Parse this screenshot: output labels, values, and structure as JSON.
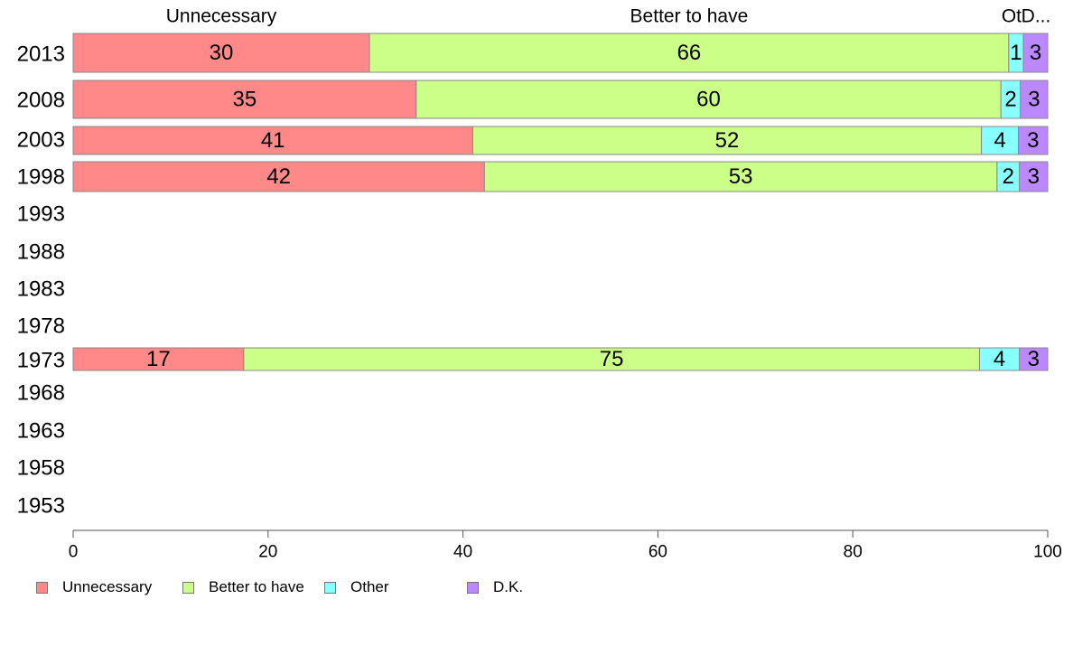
{
  "chart_data": {
    "type": "bar",
    "orientation": "horizontal",
    "stacked": true,
    "categories": [
      "2013",
      "2008",
      "2003",
      "1998",
      "1993",
      "1988",
      "1983",
      "1978",
      "1973",
      "1968",
      "1963",
      "1958",
      "1953"
    ],
    "series": [
      {
        "name": "Unnecessary",
        "color": "#FF8888",
        "values": [
          30.4,
          35.2,
          41.0,
          42.2,
          null,
          null,
          null,
          null,
          17.5,
          null,
          null,
          null,
          null
        ],
        "labels": [
          "30",
          "35",
          "41",
          "42",
          "",
          "",
          "",
          "",
          "17",
          "",
          "",
          "",
          ""
        ]
      },
      {
        "name": "Better to have",
        "color": "#CCFF88",
        "values": [
          65.6,
          60.0,
          52.2,
          52.6,
          null,
          null,
          null,
          null,
          75.5,
          null,
          null,
          null,
          null
        ],
        "labels": [
          "66",
          "60",
          "52",
          "53",
          "",
          "",
          "",
          "",
          "75",
          "",
          "",
          "",
          ""
        ]
      },
      {
        "name": "Other",
        "color": "#88FFFF",
        "values": [
          1.5,
          2.0,
          3.8,
          2.3,
          null,
          null,
          null,
          null,
          4.1,
          null,
          null,
          null,
          null
        ],
        "labels": [
          "1",
          "2",
          "4",
          "2",
          "",
          "",
          "",
          "",
          "4",
          "",
          "",
          "",
          ""
        ]
      },
      {
        "name": "D.K.",
        "color": "#BB88FF",
        "values": [
          2.5,
          2.8,
          3.0,
          2.9,
          null,
          null,
          null,
          null,
          2.9,
          null,
          null,
          null,
          null
        ],
        "labels": [
          "3",
          "3",
          "3",
          "3",
          "",
          "",
          "",
          "",
          "3",
          "",
          "",
          "",
          ""
        ]
      }
    ],
    "top_labels": [
      "Unnecessary",
      "Better to have",
      "Ot",
      "D..."
    ],
    "xlim": [
      0,
      100
    ],
    "xticks": [
      0,
      20,
      40,
      60,
      80,
      100
    ],
    "grid": false,
    "legend_position": "bottom-left"
  }
}
